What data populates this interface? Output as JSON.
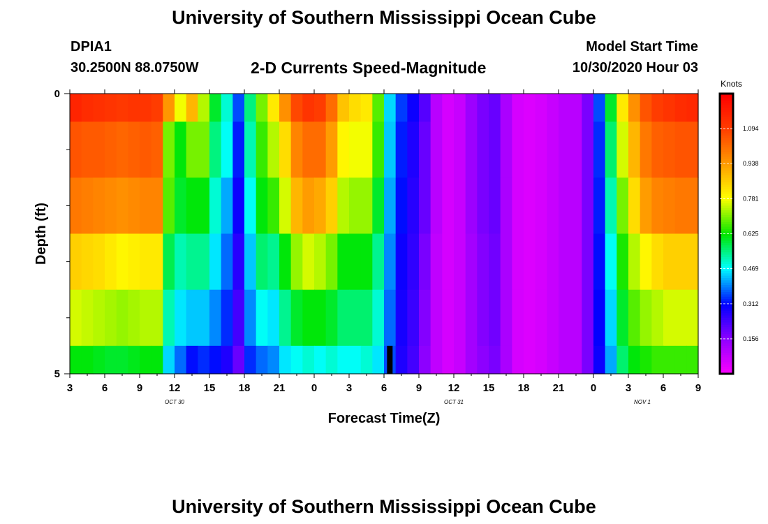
{
  "header": {
    "title": "University of Southern Mississippi Ocean Cube",
    "station": "DPIA1",
    "coords": "30.2500N 88.0750W",
    "subtitle": "2-D Currents Speed-Magnitude",
    "model_start_label": "Model Start Time",
    "model_start_value": "10/30/2020 Hour 03"
  },
  "footer": {
    "title": "University of Southern Mississippi Ocean Cube"
  },
  "chart_data": {
    "type": "heatmap",
    "title": "2-D Currents Speed-Magnitude",
    "xlabel": "Forecast Time(Z)",
    "ylabel": "Depth (ft)",
    "x_tick_labels": [
      "3",
      "6",
      "9",
      "12",
      "15",
      "18",
      "21",
      "0",
      "3",
      "6",
      "9",
      "12",
      "15",
      "18",
      "21",
      "0",
      "3",
      "6",
      "9"
    ],
    "date_labels": [
      {
        "text": "OCT 30",
        "at_tick": 3
      },
      {
        "text": "OCT 31",
        "at_tick": 11
      },
      {
        "text": "NOV 1",
        "at_tick": 16.4
      }
    ],
    "x_hours": {
      "start": 3,
      "end": 57,
      "step": 1
    },
    "y_ticks": [
      "0",
      "5"
    ],
    "ylim": [
      0,
      5
    ],
    "colorbar": {
      "unit": "Knots",
      "tick_labels": [
        "1.094",
        "0.938",
        "0.781",
        "0.625",
        "0.469",
        "0.312",
        "0.156"
      ],
      "range": [
        0,
        1.25
      ]
    },
    "row_band_edges_fraction": [
      0,
      0.1,
      0.3,
      0.5,
      0.7,
      0.9,
      1.0
    ],
    "rows": [
      [
        1.16,
        1.14,
        1.13,
        1.12,
        1.11,
        1.12,
        1.12,
        1.1,
        0.95,
        0.78,
        0.9,
        0.74,
        0.6,
        0.5,
        0.36,
        0.55,
        0.7,
        0.82,
        0.96,
        1.08,
        1.12,
        1.1,
        1.02,
        0.88,
        0.84,
        0.82,
        0.68,
        0.45,
        0.35,
        0.3,
        0.22,
        0.1,
        0.06,
        0.08,
        0.14,
        0.18,
        0.2,
        0.12,
        0.06,
        0.05,
        0.06,
        0.08,
        0.1,
        0.1,
        0.18,
        0.36,
        0.6,
        0.82,
        0.96,
        1.06,
        1.1,
        1.12,
        1.14,
        1.15
      ],
      [
        1.06,
        1.05,
        1.05,
        1.04,
        1.03,
        1.04,
        1.05,
        1.04,
        0.7,
        0.62,
        0.7,
        0.7,
        0.55,
        0.48,
        0.33,
        0.52,
        0.66,
        0.74,
        0.84,
        0.98,
        1.02,
        1.02,
        0.94,
        0.8,
        0.78,
        0.78,
        0.66,
        0.44,
        0.33,
        0.28,
        0.2,
        0.1,
        0.06,
        0.08,
        0.14,
        0.18,
        0.2,
        0.12,
        0.06,
        0.05,
        0.06,
        0.08,
        0.1,
        0.1,
        0.18,
        0.34,
        0.56,
        0.76,
        0.9,
        1.0,
        1.04,
        1.05,
        1.06,
        1.06
      ],
      [
        1.0,
        0.99,
        0.98,
        0.97,
        0.96,
        0.97,
        0.98,
        0.98,
        0.68,
        0.6,
        0.62,
        0.62,
        0.5,
        0.42,
        0.3,
        0.48,
        0.62,
        0.66,
        0.76,
        0.9,
        0.94,
        0.92,
        0.86,
        0.74,
        0.72,
        0.72,
        0.6,
        0.42,
        0.32,
        0.27,
        0.2,
        0.1,
        0.06,
        0.08,
        0.14,
        0.18,
        0.2,
        0.12,
        0.06,
        0.05,
        0.06,
        0.08,
        0.1,
        0.1,
        0.18,
        0.33,
        0.52,
        0.7,
        0.84,
        0.94,
        0.98,
        0.99,
        1.0,
        1.0
      ],
      [
        0.86,
        0.85,
        0.84,
        0.82,
        0.8,
        0.81,
        0.82,
        0.82,
        0.58,
        0.52,
        0.54,
        0.54,
        0.46,
        0.38,
        0.27,
        0.44,
        0.56,
        0.54,
        0.62,
        0.72,
        0.76,
        0.74,
        0.7,
        0.62,
        0.62,
        0.62,
        0.54,
        0.4,
        0.3,
        0.26,
        0.18,
        0.09,
        0.06,
        0.08,
        0.13,
        0.17,
        0.19,
        0.12,
        0.06,
        0.05,
        0.06,
        0.08,
        0.1,
        0.1,
        0.18,
        0.32,
        0.48,
        0.64,
        0.74,
        0.8,
        0.84,
        0.86,
        0.86,
        0.86
      ],
      [
        0.76,
        0.75,
        0.74,
        0.73,
        0.72,
        0.73,
        0.74,
        0.74,
        0.52,
        0.46,
        0.44,
        0.44,
        0.4,
        0.34,
        0.24,
        0.4,
        0.48,
        0.46,
        0.54,
        0.6,
        0.62,
        0.62,
        0.6,
        0.56,
        0.56,
        0.56,
        0.5,
        0.38,
        0.29,
        0.25,
        0.17,
        0.09,
        0.06,
        0.08,
        0.13,
        0.17,
        0.19,
        0.12,
        0.06,
        0.05,
        0.06,
        0.08,
        0.1,
        0.1,
        0.18,
        0.31,
        0.45,
        0.6,
        0.68,
        0.72,
        0.74,
        0.76,
        0.76,
        0.76
      ],
      [
        0.62,
        0.62,
        0.61,
        0.6,
        0.6,
        0.61,
        0.62,
        0.62,
        0.45,
        0.38,
        0.32,
        0.34,
        0.32,
        0.28,
        0.2,
        0.34,
        0.38,
        0.4,
        0.46,
        0.48,
        0.5,
        0.48,
        0.5,
        0.48,
        0.48,
        0.5,
        0.46,
        0.36,
        0.28,
        0.24,
        0.16,
        0.09,
        0.06,
        0.08,
        0.13,
        0.16,
        0.18,
        0.12,
        0.06,
        0.05,
        0.06,
        0.08,
        0.1,
        0.1,
        0.18,
        0.3,
        0.42,
        0.56,
        0.62,
        0.64,
        0.66,
        0.66,
        0.66,
        0.66
      ]
    ],
    "missing_cell": {
      "x_hour": 30.5,
      "row": 5
    }
  }
}
